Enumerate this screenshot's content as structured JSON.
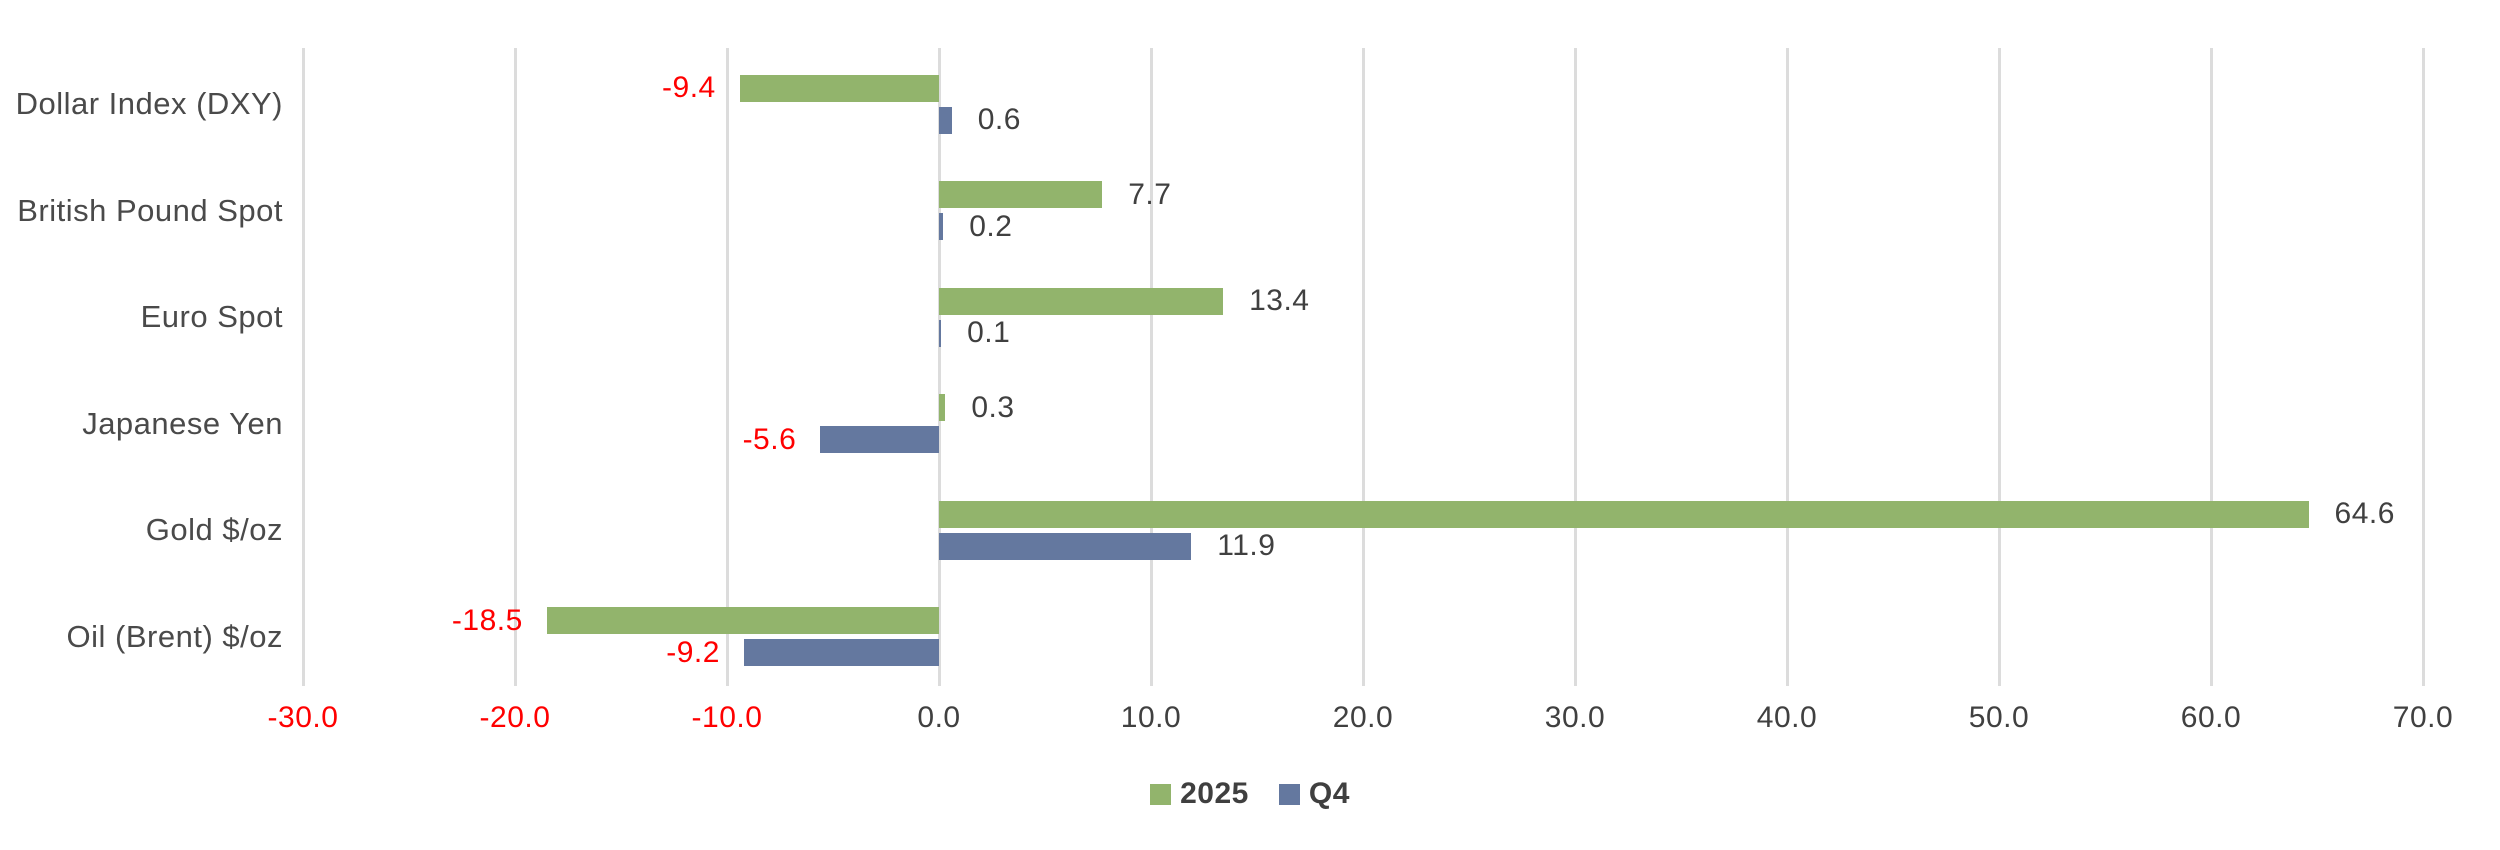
{
  "chart_data": {
    "type": "bar",
    "orientation": "horizontal",
    "title": "",
    "categories": [
      "Dollar Index (DXY)",
      "British Pound Spot",
      "Euro Spot",
      "Japanese Yen",
      "Gold $/oz",
      "Oil (Brent) $/oz"
    ],
    "series": [
      {
        "name": "2025",
        "color": "#92b46c",
        "values": [
          -9.4,
          7.7,
          13.4,
          0.3,
          64.6,
          -18.5
        ],
        "labels": [
          "-9.4",
          "7.7",
          "13.4",
          "0.3",
          "64.6",
          "-18.5"
        ]
      },
      {
        "name": "Q4",
        "color": "#64789f",
        "values": [
          0.6,
          0.2,
          0.1,
          -5.6,
          11.9,
          -9.2
        ],
        "labels": [
          "0.6",
          "0.2",
          "0.1",
          "-5.6",
          "11.9",
          "-9.2"
        ]
      }
    ],
    "xlim": [
      -30,
      70
    ],
    "x_ticks": [
      -30,
      -20,
      -10,
      0,
      10,
      20,
      30,
      40,
      50,
      60,
      70
    ],
    "x_tick_labels": [
      "-30.0",
      "-20.0",
      "-10.0",
      "0.0",
      "10.0",
      "20.0",
      "30.0",
      "40.0",
      "50.0",
      "60.0",
      "70.0"
    ],
    "grid": true,
    "legend_position": "bottom-center",
    "colors": {
      "positive_text": "#404040",
      "negative_text": "#ff0000",
      "category_text": "#4a4a4a",
      "gridline": "#dcdcdc"
    }
  }
}
